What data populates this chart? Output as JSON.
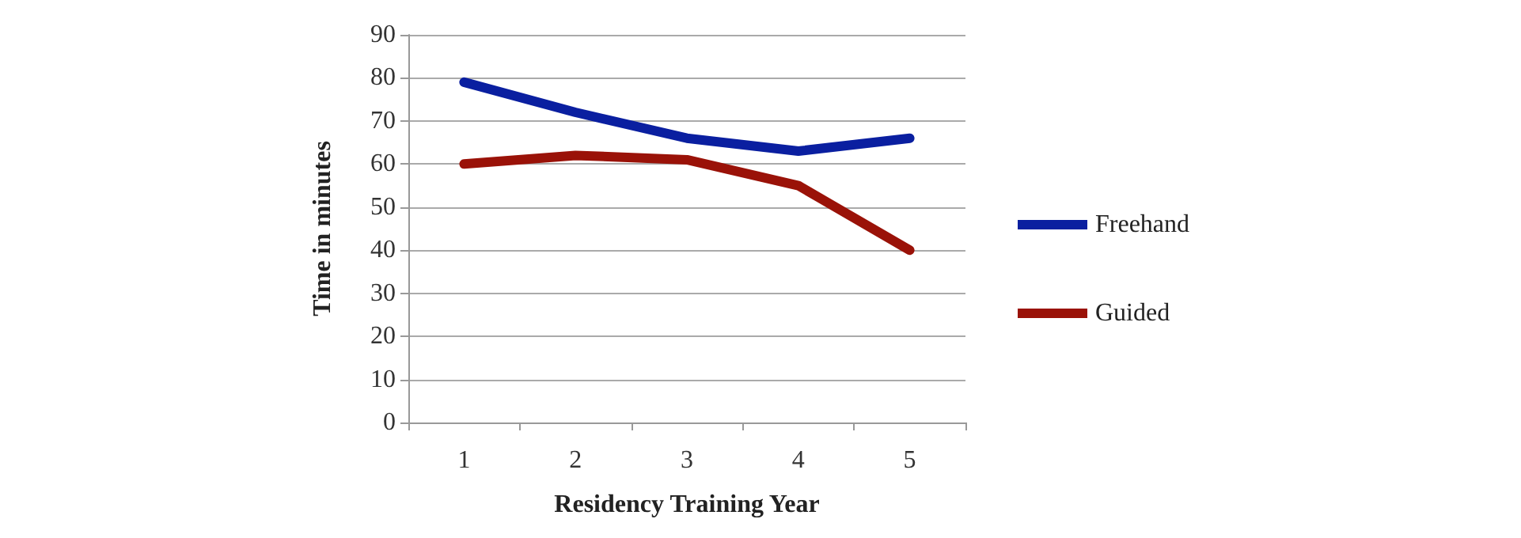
{
  "chart_data": {
    "type": "line",
    "xlabel": "Residency Training Year",
    "ylabel": "Time in minutes",
    "categories": [
      "1",
      "2",
      "3",
      "4",
      "5"
    ],
    "series": [
      {
        "name": "Freehand",
        "color": "#0a1fa0",
        "values": [
          79,
          72,
          66,
          63,
          66
        ]
      },
      {
        "name": "Guided",
        "color": "#9a1208",
        "values": [
          60,
          62,
          61,
          55,
          40
        ]
      }
    ],
    "ylim": [
      0,
      90
    ],
    "yticks": [
      0,
      10,
      20,
      30,
      40,
      50,
      60,
      70,
      80,
      90
    ],
    "grid": "y",
    "legend": "right",
    "marker": "none",
    "line_style": "solid"
  }
}
